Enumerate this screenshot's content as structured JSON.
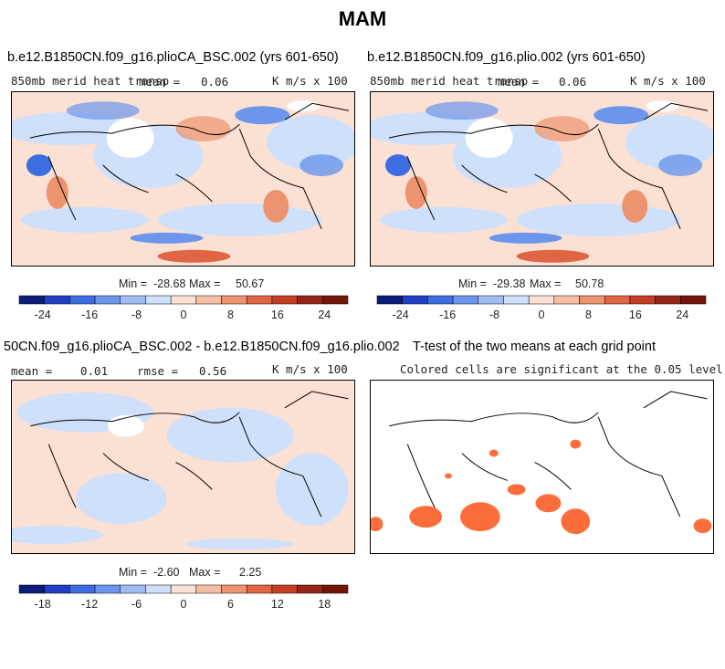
{
  "page_title": "MAM",
  "panels": [
    {
      "title": "b.e12.B1850CN.f09_g16.plioCA_BSC.002 (yrs 601-650)",
      "variable": "850mb merid heat transp",
      "mean_label": "mean =",
      "mean_value": "0.06",
      "units": "K m/s x 100",
      "min_label": "Min =",
      "min_value": "-28.68",
      "max_label": "Max =",
      "max_value": "50.67"
    },
    {
      "title": "b.e12.B1850CN.f09_g16.plio.002 (yrs 601-650)",
      "variable": "850mb merid heat transp",
      "mean_label": "mean =",
      "mean_value": "0.06",
      "units": "K m/s x 100",
      "min_label": "Min =",
      "min_value": "-29.38",
      "max_label": "Max =",
      "max_value": "50.78"
    },
    {
      "title": "50CN.f09_g16.plioCA_BSC.002 - b.e12.B1850CN.f09_g16.plio.002",
      "mean_label": "mean =",
      "mean_value": "0.01",
      "rmse_label": "rmse =",
      "rmse_value": "0.56",
      "units": "K m/s x 100",
      "min_label": "Min =",
      "min_value": "-2.60",
      "max_label": "Max =",
      "max_value": "2.25"
    },
    {
      "title": "T-test of the two means at each grid point",
      "subtitle": "Colored cells are significant at the 0.05 level"
    }
  ],
  "colorbar_colors": [
    "#0b1c7a",
    "#1f3fc4",
    "#3d6de0",
    "#6b96ec",
    "#9fbdf3",
    "#cfe0fa",
    "#fbe1d3",
    "#f6bfa4",
    "#ee936f",
    "#df6544",
    "#c43e22",
    "#952514",
    "#741509"
  ],
  "colorbar_top": {
    "ticks": [
      -24,
      -16,
      -8,
      0,
      8,
      16,
      24
    ],
    "labels": [
      "-24",
      "-16",
      "-8",
      "0",
      "8",
      "16",
      "24"
    ],
    "boundaries": [
      -24,
      -20,
      -16,
      -12,
      -8,
      -4,
      0,
      4,
      8,
      12,
      16,
      20,
      24
    ],
    "vmin": -28,
    "vmax": 28
  },
  "colorbar_diff": {
    "ticks": [
      -18,
      -12,
      -6,
      0,
      6,
      12,
      18
    ],
    "labels": [
      "-18",
      "-12",
      "-6",
      "0",
      "6",
      "12",
      "18"
    ],
    "boundaries": [
      -18,
      -15,
      -12,
      -9,
      -6,
      -3,
      0,
      3,
      6,
      9,
      12,
      15,
      18
    ],
    "vmin": -21,
    "vmax": 21
  },
  "colors": {
    "blue_strong": "#3d6de0",
    "blue_mid": "#6b96ec",
    "blue_light": "#cfe0fa",
    "red_light": "#fbe1d3",
    "red_mid": "#ee936f",
    "red_strong": "#c43e22",
    "signif": "#fb6e3c"
  }
}
